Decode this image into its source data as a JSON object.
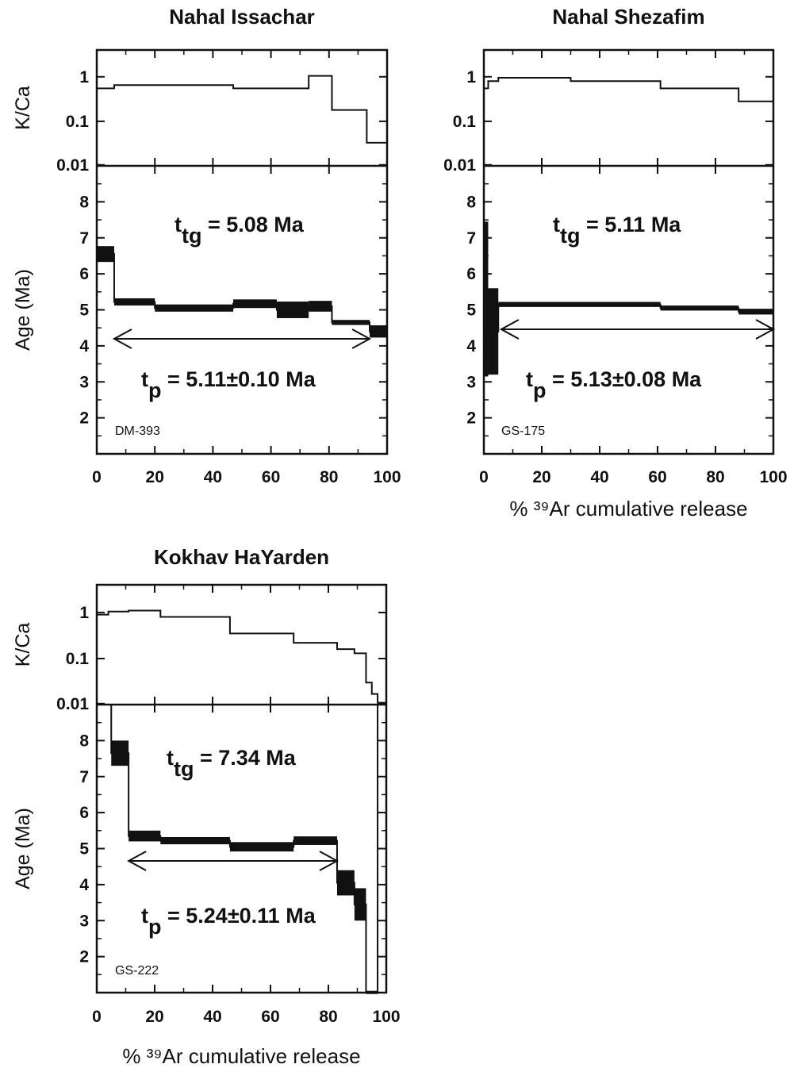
{
  "chart_data": [
    {
      "type": "step",
      "title": "Nahal Issachar",
      "sample": "DM-393",
      "xlabel": "",
      "xlim": [
        0,
        100
      ],
      "xticks": [
        0,
        20,
        40,
        60,
        80,
        100
      ],
      "top_panel": {
        "ylabel": "K/Ca",
        "scale": "log",
        "ylim": [
          0.01,
          4
        ],
        "yticks": [
          "0.01",
          "0.1",
          "1"
        ],
        "steps": [
          {
            "x0": 0,
            "x1": 6,
            "y": 0.55
          },
          {
            "x0": 6,
            "x1": 47,
            "y": 0.65
          },
          {
            "x0": 47,
            "x1": 73,
            "y": 0.55
          },
          {
            "x0": 73,
            "x1": 81,
            "y": 1.05
          },
          {
            "x0": 81,
            "x1": 93,
            "y": 0.18
          },
          {
            "x0": 93,
            "x1": 100,
            "y": 0.033
          }
        ]
      },
      "bottom_panel": {
        "ylabel": "Age (Ma)",
        "ylim": [
          1,
          9
        ],
        "yticks": [
          "2",
          "3",
          "4",
          "5",
          "6",
          "7",
          "8"
        ],
        "steps": [
          {
            "x0": 0,
            "x1": 6,
            "age": 6.55,
            "err": 0.22
          },
          {
            "x0": 6,
            "x1": 20,
            "age": 5.22,
            "err": 0.1
          },
          {
            "x0": 20,
            "x1": 47,
            "age": 5.05,
            "err": 0.1
          },
          {
            "x0": 47,
            "x1": 62,
            "age": 5.17,
            "err": 0.12
          },
          {
            "x0": 62,
            "x1": 73,
            "age": 5.0,
            "err": 0.23
          },
          {
            "x0": 73,
            "x1": 81,
            "age": 5.1,
            "err": 0.15
          },
          {
            "x0": 81,
            "x1": 94,
            "age": 4.65,
            "err": 0.07
          },
          {
            "x0": 94,
            "x1": 100,
            "age": 4.4,
            "err": 0.17
          }
        ],
        "plateau_range": [
          6,
          94
        ],
        "t_tg": {
          "prefix": "t",
          "sub": "tg",
          "text": " = 5.08 Ma"
        },
        "t_p": {
          "prefix": "t",
          "sub": "p",
          "text": " = 5.11±0.10 Ma"
        }
      }
    },
    {
      "type": "step",
      "title": "Nahal Shezafim",
      "sample": "GS-175",
      "xlabel": "% ³⁹Ar cumulative release",
      "xlim": [
        0,
        100
      ],
      "xticks": [
        0,
        20,
        40,
        60,
        80,
        100
      ],
      "top_panel": {
        "ylabel": "",
        "scale": "log",
        "ylim": [
          0.01,
          4
        ],
        "yticks": [
          "0.01",
          "0.1",
          "1"
        ],
        "steps": [
          {
            "x0": 0,
            "x1": 1.5,
            "y": 0.55
          },
          {
            "x0": 1.5,
            "x1": 5,
            "y": 0.8
          },
          {
            "x0": 5,
            "x1": 30,
            "y": 0.95
          },
          {
            "x0": 30,
            "x1": 61,
            "y": 0.8
          },
          {
            "x0": 61,
            "x1": 88,
            "y": 0.55
          },
          {
            "x0": 88,
            "x1": 100,
            "y": 0.28
          }
        ]
      },
      "bottom_panel": {
        "ylabel": "",
        "ylim": [
          1,
          9
        ],
        "yticks": [
          "2",
          "3",
          "4",
          "5",
          "6",
          "7",
          "8"
        ],
        "steps": [
          {
            "x0": 0,
            "x1": 1.5,
            "age": 5.3,
            "err": 2.15
          },
          {
            "x0": 1.5,
            "x1": 5,
            "age": 4.4,
            "err": 1.2
          },
          {
            "x0": 5,
            "x1": 61,
            "age": 5.15,
            "err": 0.07
          },
          {
            "x0": 61,
            "x1": 88,
            "age": 5.05,
            "err": 0.07
          },
          {
            "x0": 88,
            "x1": 100,
            "age": 4.95,
            "err": 0.08
          }
        ],
        "plateau_range": [
          6,
          100
        ],
        "t_tg": {
          "prefix": "t",
          "sub": "tg",
          "text": " = 5.11 Ma"
        },
        "t_p": {
          "prefix": "t",
          "sub": "p",
          "text": " = 5.13±0.08 Ma"
        }
      }
    },
    {
      "type": "step",
      "title": "Kokhav HaYarden",
      "sample": "GS-222",
      "xlabel": "% ³⁹Ar cumulative release",
      "xlim": [
        0,
        100
      ],
      "xticks": [
        0,
        20,
        40,
        60,
        80,
        100
      ],
      "top_panel": {
        "ylabel": "K/Ca",
        "scale": "log",
        "ylim": [
          0.01,
          4
        ],
        "yticks": [
          "0.01",
          "0.1",
          "1"
        ],
        "steps": [
          {
            "x0": 0,
            "x1": 4,
            "y": 0.9
          },
          {
            "x0": 4,
            "x1": 11,
            "y": 1.05
          },
          {
            "x0": 11,
            "x1": 22,
            "y": 1.1
          },
          {
            "x0": 22,
            "x1": 46,
            "y": 0.8
          },
          {
            "x0": 46,
            "x1": 68,
            "y": 0.35
          },
          {
            "x0": 68,
            "x1": 83,
            "y": 0.22
          },
          {
            "x0": 83,
            "x1": 89,
            "y": 0.16
          },
          {
            "x0": 89,
            "x1": 93,
            "y": 0.13
          },
          {
            "x0": 93,
            "x1": 95,
            "y": 0.03
          },
          {
            "x0": 95,
            "x1": 97,
            "y": 0.017
          },
          {
            "x0": 97,
            "x1": 100,
            "y": 0.011
          }
        ]
      },
      "bottom_panel": {
        "ylabel": "Age (Ma)",
        "ylim": [
          1,
          9
        ],
        "yticks": [
          "2",
          "3",
          "4",
          "5",
          "6",
          "7",
          "8"
        ],
        "steps": [
          {
            "x0": 0,
            "x1": 5,
            "age": 10.0,
            "err": 0.0
          },
          {
            "x0": 5,
            "x1": 11,
            "age": 7.65,
            "err": 0.35
          },
          {
            "x0": 11,
            "x1": 22,
            "age": 5.35,
            "err": 0.15
          },
          {
            "x0": 22,
            "x1": 46,
            "age": 5.22,
            "err": 0.1
          },
          {
            "x0": 46,
            "x1": 68,
            "age": 5.05,
            "err": 0.13
          },
          {
            "x0": 68,
            "x1": 83,
            "age": 5.22,
            "err": 0.12
          },
          {
            "x0": 83,
            "x1": 89,
            "age": 4.05,
            "err": 0.35
          },
          {
            "x0": 89,
            "x1": 93,
            "age": 3.45,
            "err": 0.45
          },
          {
            "x0": 93,
            "x1": 95,
            "age": 1.0,
            "err": 0.05
          },
          {
            "x0": 95,
            "x1": 97,
            "age": 1.0,
            "err": 0.05
          },
          {
            "x0": 97,
            "x1": 100,
            "age": 9.5,
            "err": 0.0
          }
        ],
        "plateau_range": [
          11,
          83
        ],
        "t_tg": {
          "prefix": "t",
          "sub": "tg",
          "text": " = 7.34 Ma"
        },
        "t_p": {
          "prefix": "t",
          "sub": "p",
          "text": " = 5.24±0.11 Ma"
        }
      }
    }
  ]
}
